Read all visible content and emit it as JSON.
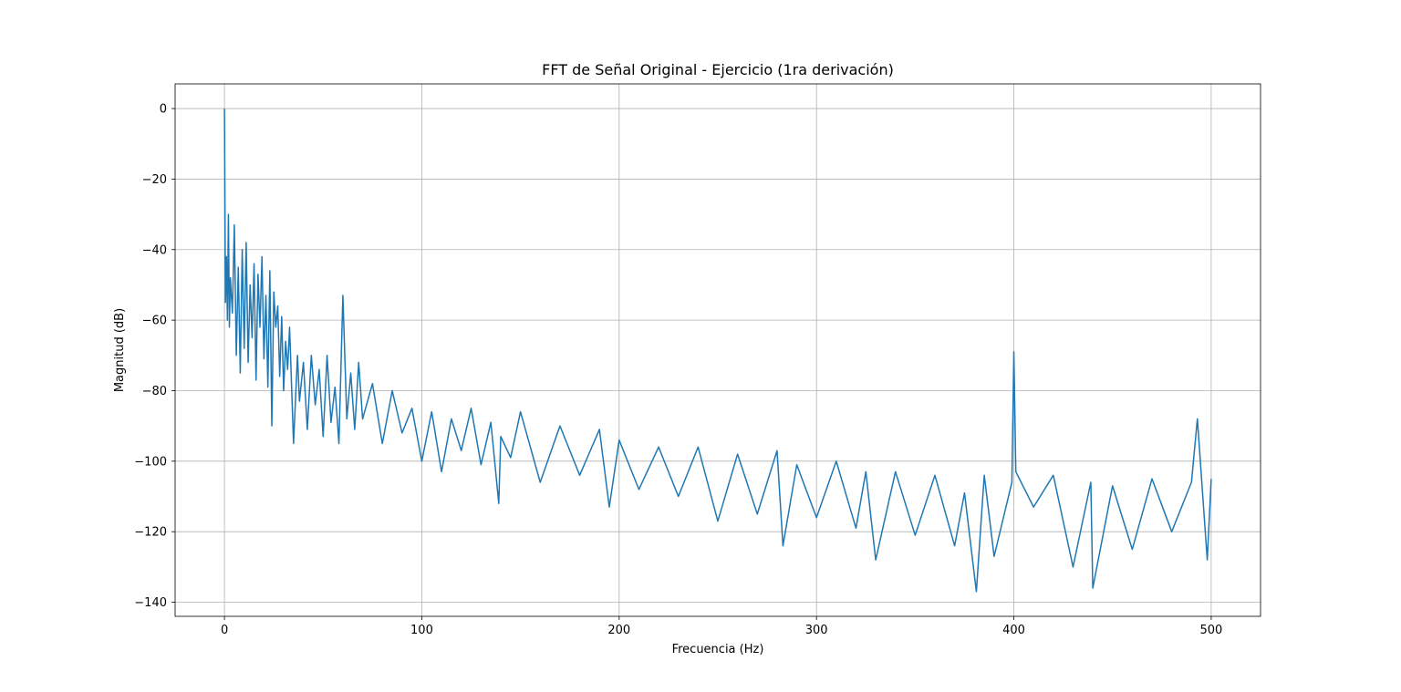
{
  "chart_data": {
    "type": "line",
    "title": "FFT de Señal Original - Ejercicio (1ra derivación)",
    "xlabel": "Frecuencia (Hz)",
    "ylabel": "Magnitud (dB)",
    "xlim": [
      -25,
      525
    ],
    "ylim": [
      -144,
      7
    ],
    "x_ticks": [
      0,
      100,
      200,
      300,
      400,
      500
    ],
    "y_ticks": [
      0,
      -20,
      -40,
      -60,
      -80,
      -100,
      -120,
      -140
    ],
    "x_tick_labels": [
      "0",
      "100",
      "200",
      "300",
      "400",
      "500"
    ],
    "y_tick_labels": [
      "0",
      "−20",
      "−40",
      "−60",
      "−80",
      "−100",
      "−120",
      "−140"
    ],
    "grid": true,
    "line_color": "#1f77b4",
    "series": [
      {
        "x": [
          0,
          0.5,
          1,
          1.5,
          2,
          2.5,
          3,
          4,
          5,
          6,
          7,
          8,
          9,
          10,
          11,
          12,
          13,
          14,
          15,
          16,
          17,
          18,
          19,
          20,
          21,
          22,
          23,
          24,
          25,
          26,
          27,
          28,
          29,
          30,
          31,
          32,
          33,
          35,
          37,
          38,
          40,
          42,
          44,
          46,
          48,
          50,
          52,
          54,
          56,
          58,
          60,
          62,
          64,
          66,
          68,
          70,
          75,
          80,
          85,
          90,
          95,
          100,
          105,
          110,
          115,
          120,
          125,
          130,
          135,
          139,
          140,
          145,
          150,
          160,
          170,
          180,
          190,
          195,
          200,
          210,
          220,
          230,
          240,
          250,
          260,
          270,
          280,
          283,
          290,
          300,
          310,
          320,
          325,
          330,
          340,
          350,
          360,
          370,
          375,
          381,
          385,
          390,
          399,
          400,
          401,
          410,
          420,
          430,
          439,
          440,
          450,
          460,
          470,
          480,
          490,
          493,
          498,
          500
        ],
        "y": [
          0,
          -55,
          -42,
          -60,
          -30,
          -62,
          -48,
          -58,
          -33,
          -70,
          -45,
          -75,
          -40,
          -68,
          -38,
          -72,
          -50,
          -65,
          -44,
          -77,
          -47,
          -62,
          -42,
          -71,
          -53,
          -79,
          -46,
          -90,
          -52,
          -62,
          -56,
          -76,
          -59,
          -80,
          -66,
          -74,
          -62,
          -95,
          -70,
          -83,
          -72,
          -91,
          -70,
          -84,
          -74,
          -93,
          -70,
          -89,
          -79,
          -95,
          -53,
          -88,
          -75,
          -91,
          -72,
          -88,
          -78,
          -95,
          -80,
          -92,
          -85,
          -100,
          -86,
          -103,
          -88,
          -97,
          -85,
          -101,
          -89,
          -112,
          -93,
          -99,
          -86,
          -106,
          -90,
          -104,
          -91,
          -113,
          -94,
          -108,
          -96,
          -110,
          -96,
          -117,
          -98,
          -115,
          -97,
          -124,
          -101,
          -116,
          -100,
          -119,
          -103,
          -128,
          -103,
          -121,
          -104,
          -124,
          -109,
          -137,
          -104,
          -127,
          -106,
          -69,
          -103,
          -113,
          -104,
          -130,
          -106,
          -136,
          -107,
          -125,
          -105,
          -120,
          -106,
          -88,
          -128,
          -105
        ]
      }
    ]
  }
}
